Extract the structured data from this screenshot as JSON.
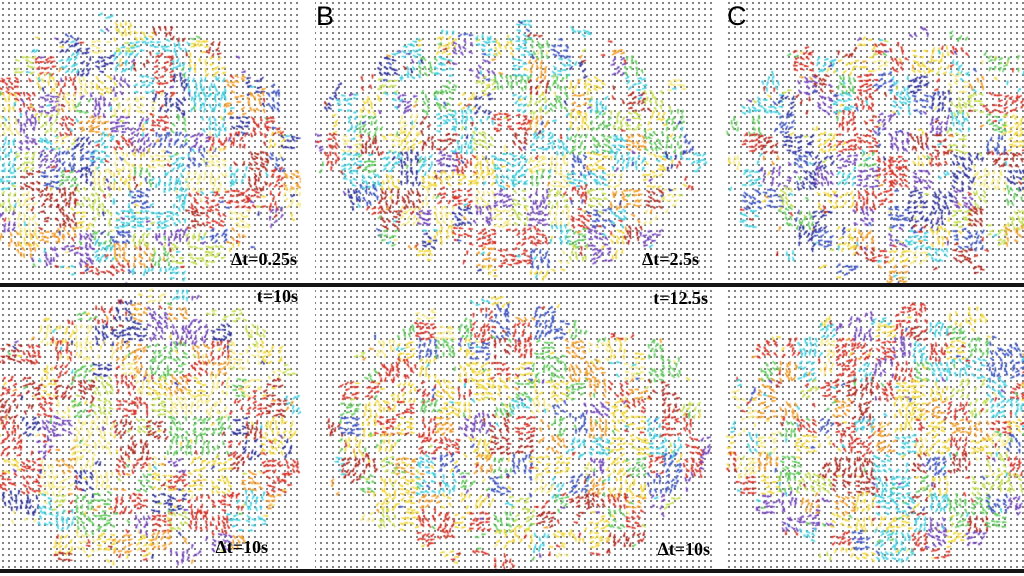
{
  "figure": {
    "panels": [
      {
        "id": "top-left",
        "letter": "",
        "time_label": "",
        "dt_label": "Δt=0.25s"
      },
      {
        "id": "top-middle",
        "letter": "B",
        "time_label": "",
        "dt_label": "Δt=2.5s"
      },
      {
        "id": "top-right",
        "letter": "C",
        "time_label": "",
        "dt_label": ""
      },
      {
        "id": "bottom-left",
        "letter": "",
        "time_label": "t=10s",
        "dt_label": "Δt=10s"
      },
      {
        "id": "bottom-middle",
        "letter": "",
        "time_label": "t=12.5s",
        "dt_label": "Δt=10s"
      },
      {
        "id": "bottom-right",
        "letter": "",
        "time_label": "",
        "dt_label": ""
      }
    ],
    "colors": {
      "background": "#ffffff",
      "grid_dot": "#7d7d7d",
      "divider_line": "#151515"
    },
    "palette": {
      "red": "#d93025",
      "darkred": "#b0261c",
      "orange": "#f29b25",
      "yellow": "#f2d839",
      "paleyellow": "#f6ea80",
      "yellowgreen": "#c3de4e",
      "green": "#5fcb5a",
      "cyan": "#3fd0e0",
      "blue": "#3a53c4",
      "navy": "#2b2f9c",
      "purple": "#7242bc"
    },
    "panel_palettes": [
      [
        "red",
        "red",
        "darkred",
        "cyan",
        "cyan",
        "cyan",
        "yellow",
        "yellow",
        "paleyellow",
        "green",
        "yellowgreen",
        "blue",
        "navy",
        "purple",
        "purple",
        "orange"
      ],
      [
        "cyan",
        "cyan",
        "cyan",
        "blue",
        "navy",
        "purple",
        "yellow",
        "yellow",
        "paleyellow",
        "yellowgreen",
        "green",
        "red",
        "red",
        "darkred",
        "orange"
      ],
      [
        "red",
        "red",
        "darkred",
        "yellow",
        "yellow",
        "paleyellow",
        "cyan",
        "cyan",
        "green",
        "yellowgreen",
        "purple",
        "navy",
        "blue",
        "orange"
      ],
      [
        "red",
        "red",
        "red",
        "darkred",
        "orange",
        "orange",
        "yellow",
        "yellow",
        "yellow",
        "paleyellow",
        "paleyellow",
        "yellowgreen",
        "green",
        "cyan",
        "navy",
        "purple"
      ],
      [
        "red",
        "red",
        "red",
        "darkred",
        "yellow",
        "yellow",
        "yellow",
        "paleyellow",
        "orange",
        "yellowgreen",
        "green",
        "green",
        "cyan",
        "blue",
        "purple"
      ],
      [
        "red",
        "red",
        "red",
        "darkred",
        "orange",
        "yellow",
        "yellow",
        "paleyellow",
        "cyan",
        "cyan",
        "blue",
        "green",
        "yellowgreen",
        "purple"
      ]
    ]
  }
}
